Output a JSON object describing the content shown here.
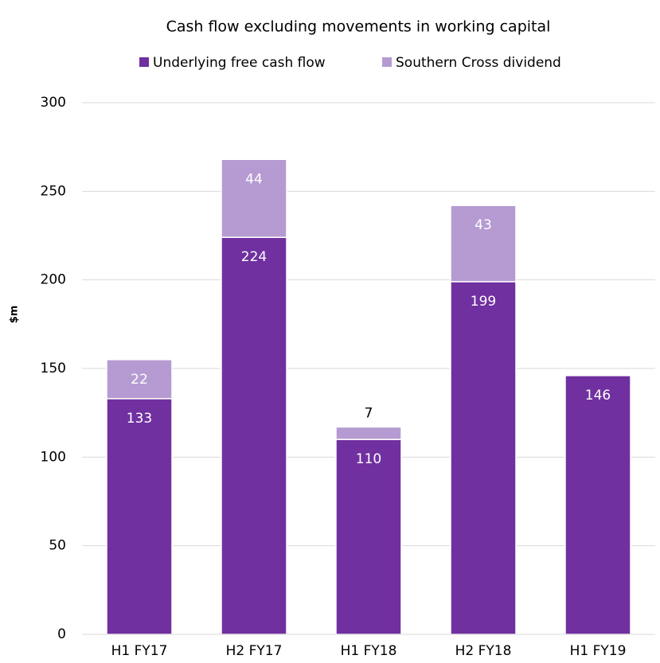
{
  "chart_data": {
    "type": "stacked_bar",
    "title": "Cash flow excluding movements in working capital",
    "ylabel": "$m",
    "categories": [
      "H1 FY17",
      "H2 FY17",
      "H1 FY18",
      "H2 FY18",
      "H1 FY19"
    ],
    "series": [
      {
        "name": "Underlying free cash flow",
        "color": "#7030a0",
        "values": [
          133,
          224,
          110,
          199,
          146
        ]
      },
      {
        "name": "Southern Cross dividend",
        "color": "#b59bd2",
        "values": [
          22,
          44,
          7,
          43,
          null
        ]
      }
    ],
    "ylim": [
      0,
      300
    ],
    "yticks": [
      0,
      50,
      100,
      150,
      200,
      250,
      300
    ],
    "grid": true,
    "legend": "top"
  }
}
